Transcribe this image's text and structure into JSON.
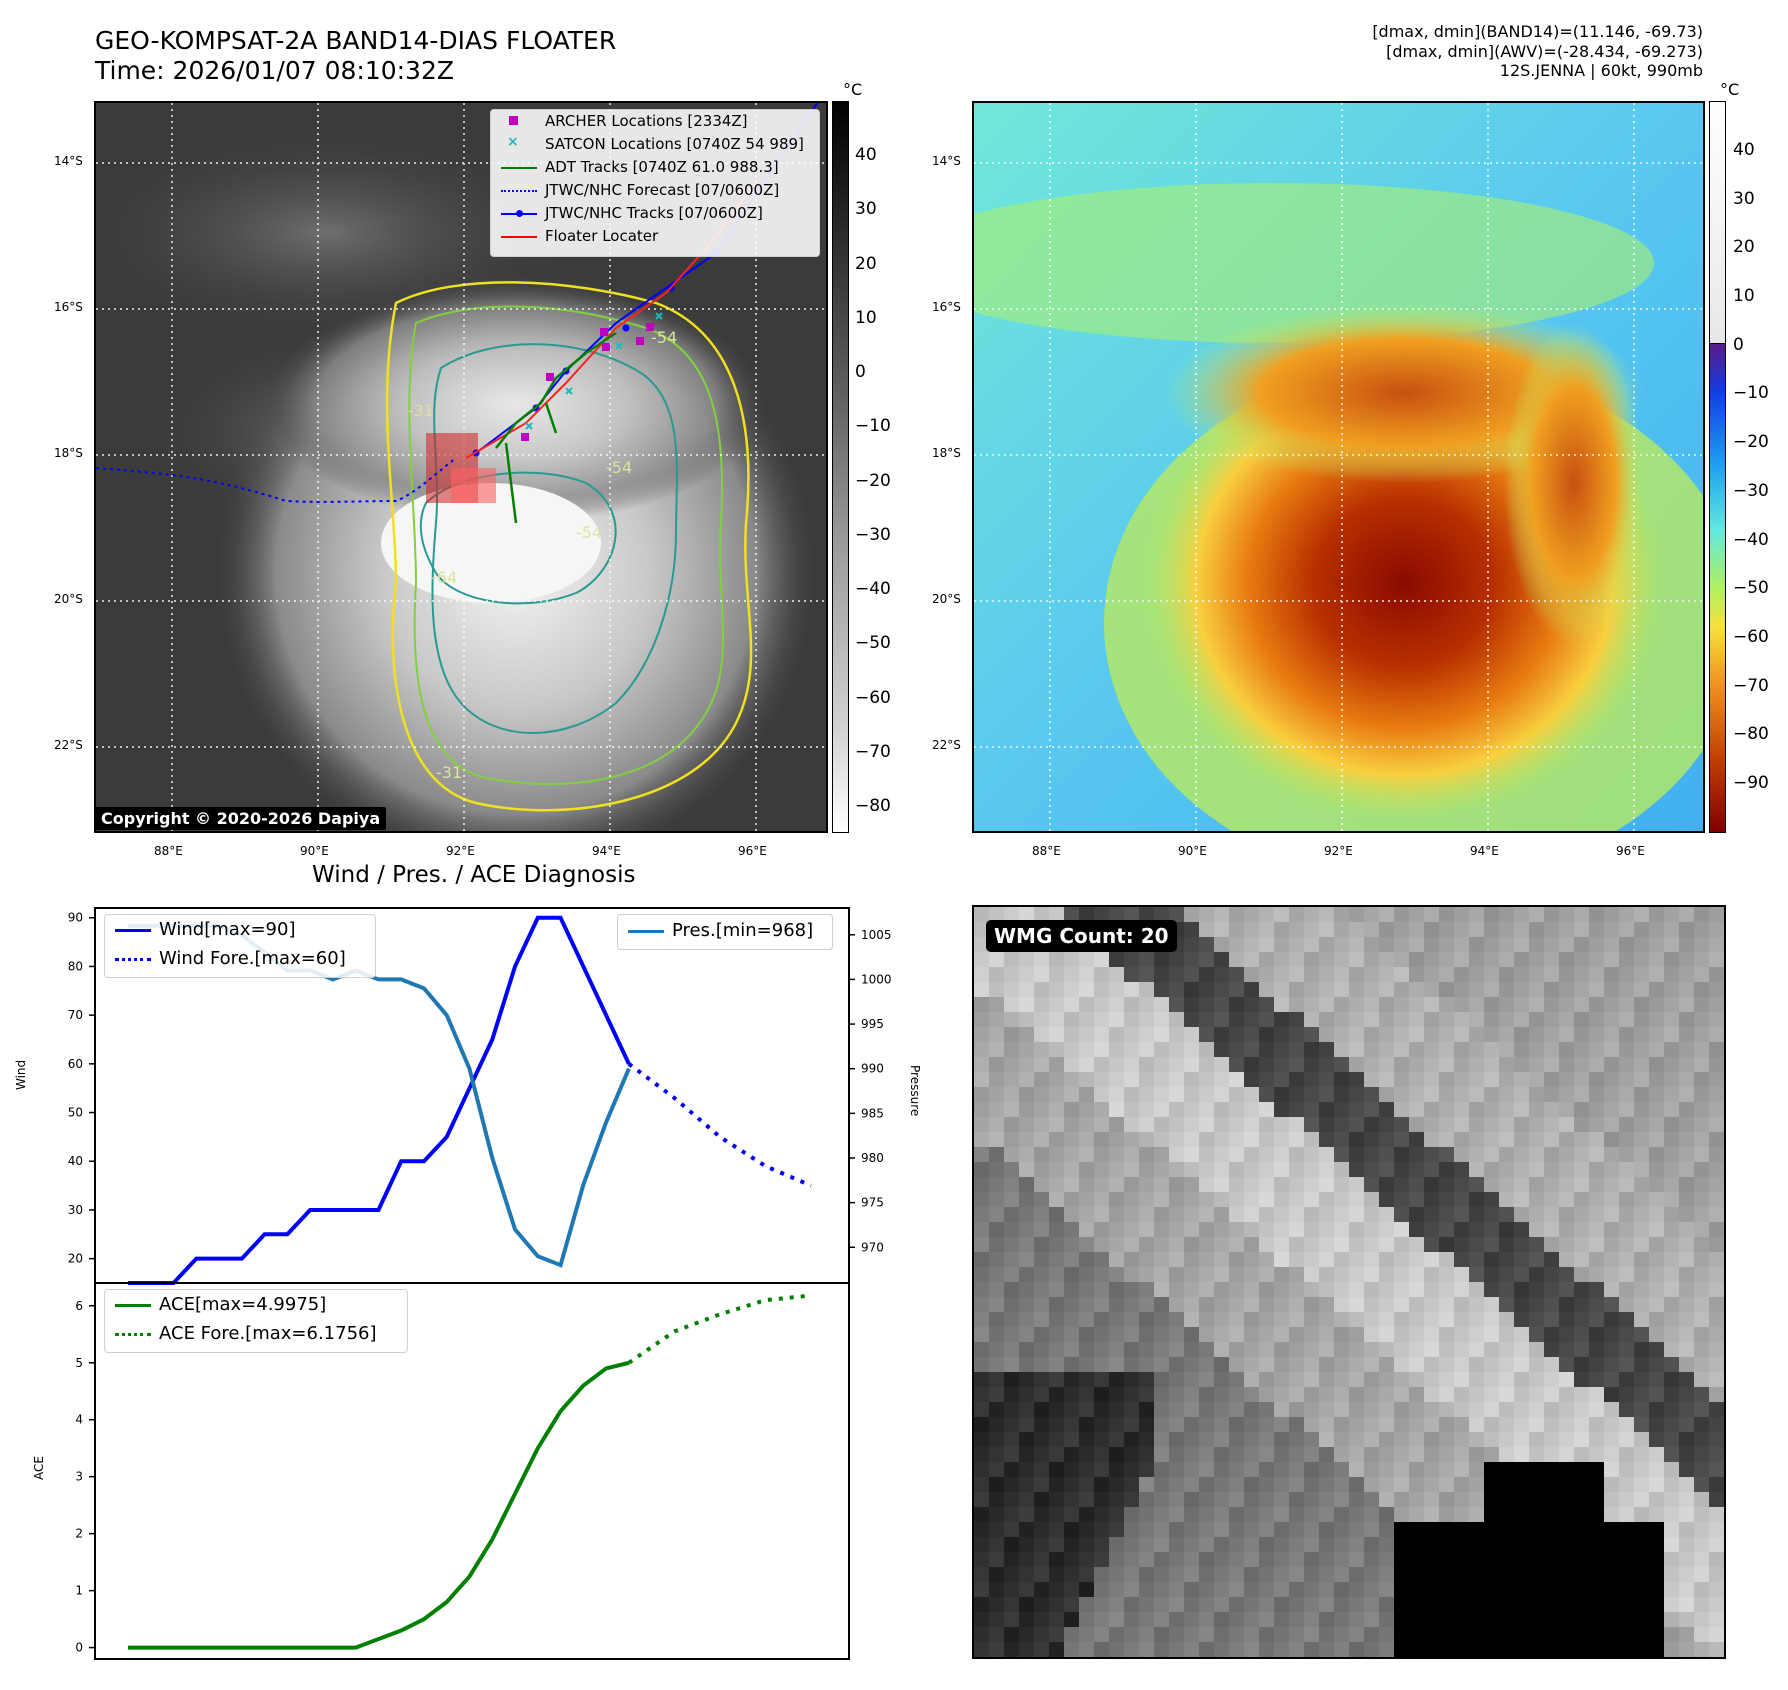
{
  "title": {
    "line1": "GEO-KOMPSAT-2A BAND14-DIAS FLOATER",
    "line2": "Time: 2026/01/07 08:10:32Z"
  },
  "info": {
    "line1": "[dmax, dmin](BAND14)=(11.146, -69.73)",
    "line2": "[dmax, dmin](AWV)=(-28.434, -69.273)",
    "line3": "12S.JENNA | 60kt, 990mb"
  },
  "map": {
    "lat_labels": [
      "14°S",
      "16°S",
      "18°S",
      "20°S",
      "22°S"
    ],
    "lon_labels": [
      "88°E",
      "90°E",
      "92°E",
      "94°E",
      "96°E"
    ],
    "colorbar_unit": "°C",
    "ir_colorbar_ticks": [
      "40",
      "30",
      "20",
      "10",
      "0",
      "−10",
      "−20",
      "−30",
      "−40",
      "−50",
      "−60",
      "−70",
      "−80"
    ],
    "awv_colorbar_ticks": [
      "40",
      "30",
      "20",
      "10",
      "0",
      "−10",
      "−20",
      "−30",
      "−40",
      "−50",
      "−60",
      "−70",
      "−80",
      "−90"
    ],
    "contour_labels": [
      "-31",
      "-54",
      "-64",
      "-54",
      "-31",
      "-54"
    ],
    "copyright": "Copyright © 2020-2026 Dapiya",
    "legend": [
      {
        "label": "ARCHER Locations [2334Z]",
        "color": "#c000c0",
        "kind": "square"
      },
      {
        "label": "SATCON Locations [0740Z 54 989]",
        "color": "#20b8b8",
        "kind": "x"
      },
      {
        "label": "ADT Tracks [0740Z 61.0 988.3]",
        "color": "#008000",
        "kind": "line"
      },
      {
        "label": "JTWC/NHC Forecast [07/0600Z]",
        "color": "#0000ff",
        "kind": "dotted"
      },
      {
        "label": "JTWC/NHC Tracks [07/0600Z]",
        "color": "#0000ff",
        "kind": "line-dot"
      },
      {
        "label": "Floater Locater",
        "color": "#ff0000",
        "kind": "line"
      }
    ]
  },
  "diag_title": "Wind / Pres. / ACE Diagnosis",
  "wmg_label": "WMG Count: 20",
  "chart_data": [
    {
      "type": "line",
      "title": "Wind / Pres. / ACE Diagnosis",
      "ylabel": "Wind",
      "ylim": [
        15,
        92
      ],
      "y2label": "Pressure",
      "y2lim": [
        966,
        1008
      ],
      "yticks": [
        20,
        30,
        40,
        50,
        60,
        70,
        80,
        90
      ],
      "y2ticks": [
        970,
        975,
        980,
        985,
        990,
        995,
        1000,
        1005
      ],
      "series": [
        {
          "name": "Wind[max=90]",
          "color": "#0000ff",
          "style": "solid",
          "axis": "left",
          "x": [
            0,
            1,
            2,
            3,
            4,
            5,
            6,
            7,
            8,
            9,
            10,
            11,
            12,
            13,
            14,
            15,
            16,
            17,
            18,
            19,
            20,
            21,
            22
          ],
          "values": [
            15,
            15,
            15,
            20,
            20,
            20,
            25,
            25,
            30,
            30,
            30,
            30,
            40,
            40,
            45,
            55,
            65,
            80,
            90,
            90,
            80,
            70,
            60
          ]
        },
        {
          "name": "Wind Fore.[max=60]",
          "color": "#0000ff",
          "style": "dotted",
          "axis": "left",
          "x": [
            22,
            24,
            26,
            28,
            30
          ],
          "values": [
            60,
            53,
            45,
            39,
            35
          ]
        },
        {
          "name": "Pres.[min=968]",
          "color": "#1f77b4",
          "style": "solid",
          "axis": "right",
          "x": [
            0,
            1,
            2,
            3,
            4,
            5,
            6,
            7,
            8,
            9,
            10,
            11,
            12,
            13,
            14,
            15,
            16,
            17,
            18,
            19,
            20,
            21,
            22
          ],
          "values": [
            1006,
            1006,
            1006,
            1006,
            1006,
            1005,
            1003,
            1001,
            1001,
            1000,
            1001,
            1000,
            1000,
            999,
            996,
            990,
            980,
            972,
            969,
            968,
            977,
            984,
            990
          ]
        }
      ]
    },
    {
      "type": "line",
      "ylabel": "ACE",
      "ylim": [
        -0.2,
        6.4
      ],
      "yticks": [
        0,
        1,
        2,
        3,
        4,
        5,
        6
      ],
      "series": [
        {
          "name": "ACE[max=4.9975]",
          "color": "#008000",
          "style": "solid",
          "x": [
            0,
            1,
            2,
            3,
            4,
            5,
            6,
            7,
            8,
            9,
            10,
            11,
            12,
            13,
            14,
            15,
            16,
            17,
            18,
            19,
            20,
            21,
            22
          ],
          "values": [
            0,
            0,
            0,
            0,
            0,
            0,
            0,
            0,
            0,
            0,
            0,
            0.15,
            0.3,
            0.5,
            0.8,
            1.25,
            1.9,
            2.7,
            3.5,
            4.15,
            4.6,
            4.9,
            5.0
          ]
        },
        {
          "name": "ACE Fore.[max=6.1756]",
          "color": "#008000",
          "style": "dotted",
          "x": [
            22,
            24,
            26,
            28,
            30
          ],
          "values": [
            5.0,
            5.55,
            5.85,
            6.1,
            6.18
          ]
        }
      ]
    }
  ]
}
